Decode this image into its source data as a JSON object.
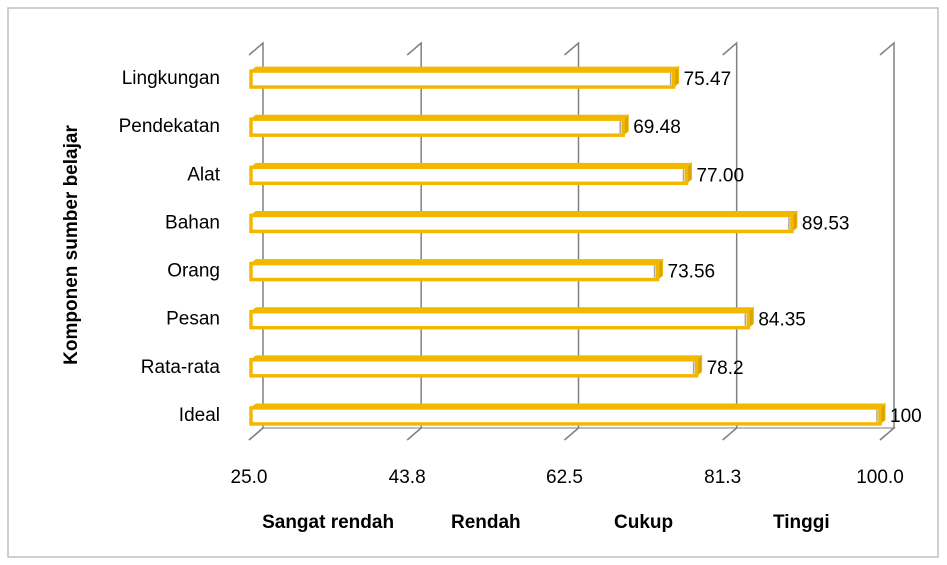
{
  "chart_data": {
    "type": "bar",
    "orientation": "horizontal",
    "y_axis_label": "Komponen sumber belajar",
    "categories": [
      "Lingkungan",
      "Pendekatan",
      "Alat",
      "Bahan",
      "Orang",
      "Pesan",
      "Rata-rata",
      "Ideal"
    ],
    "values": [
      75.47,
      69.48,
      77.0,
      89.53,
      73.56,
      84.35,
      78.2,
      100
    ],
    "value_labels": [
      "75.47",
      "69.48",
      "77.00",
      "89.53",
      "73.56",
      "84.35",
      "78.2",
      "100"
    ],
    "color": "#f2b800",
    "xlim": [
      25,
      100
    ],
    "xticks": [
      {
        "value": 25,
        "label": "25.0"
      },
      43.8,
      62.5,
      81.3,
      {
        "value": 100,
        "label": "100.0"
      }
    ],
    "zone_labels": [
      "Sangat rendah",
      "Rendah",
      "Cukup",
      "Tinggi"
    ],
    "grid": true
  }
}
